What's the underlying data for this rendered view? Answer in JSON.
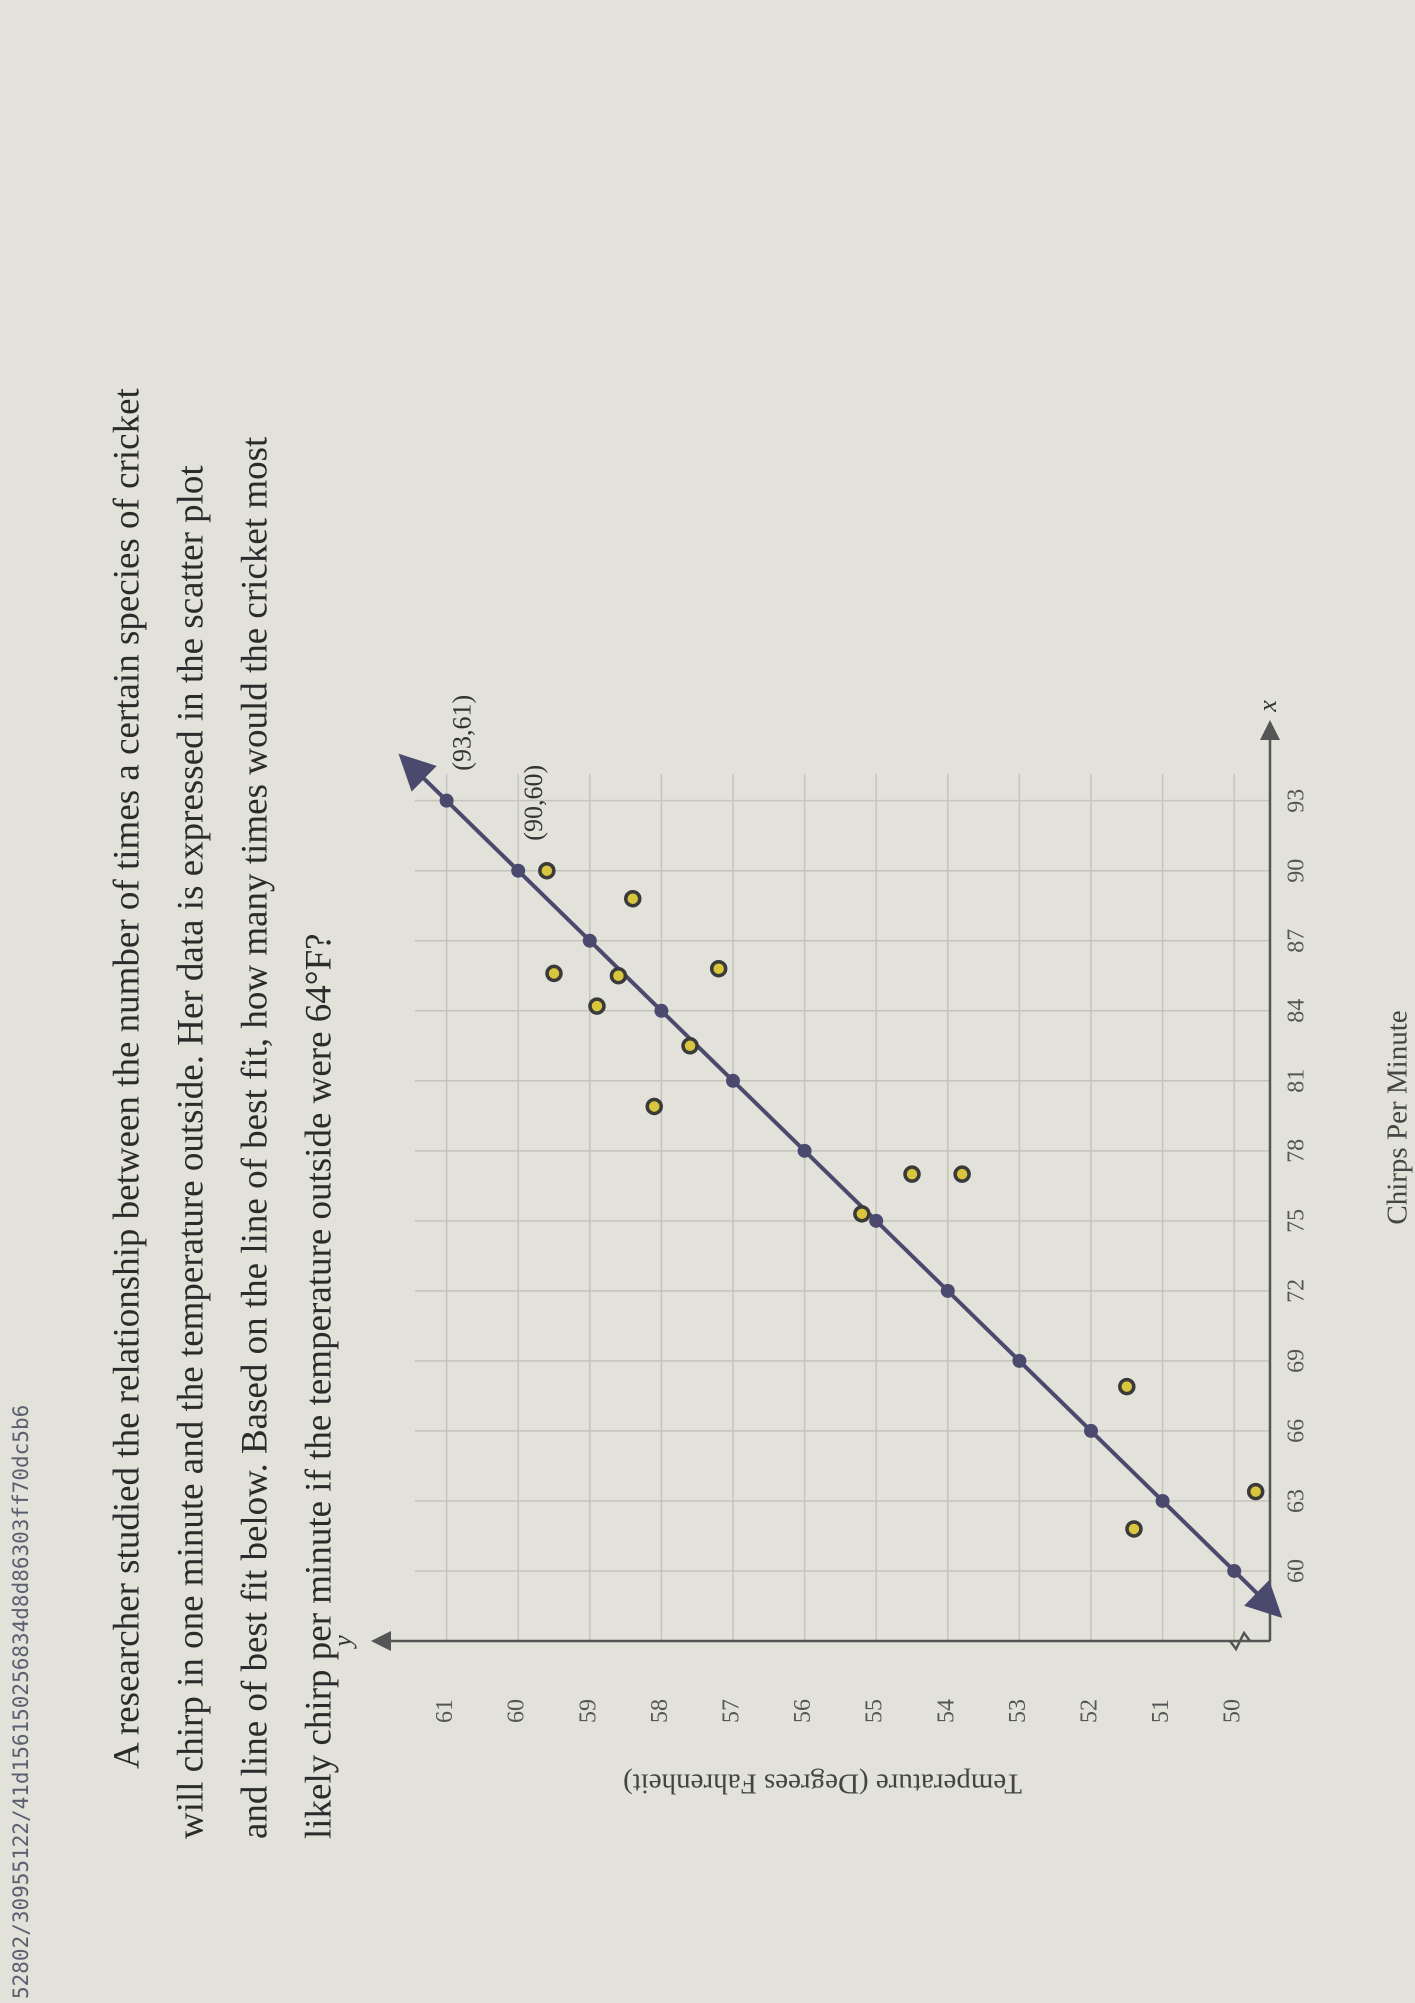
{
  "header": {
    "path": "52802/30955122/41d156150256834d8d86303ff70dc5b6"
  },
  "problem": {
    "lines": [
      "A researcher studied the relationship between the number of times a certain species of cricket",
      "will chirp in one minute and the temperature outside. Her data is expressed in the scatter plot",
      "and line of best fit below. Based on the line of best fit, how many times would the cricket most",
      "likely chirp per minute if the temperature outside were 64°F?"
    ]
  },
  "chart_data": {
    "type": "scatter",
    "x_label": "Chirps Per Minute",
    "y_label": "Temperature (Degrees Fahrenheit)",
    "x_axis_letter": "x",
    "y_axis_letter": "y",
    "xlim": [
      57,
      95
    ],
    "ylim": [
      49.5,
      62
    ],
    "xticks": [
      60,
      63,
      66,
      69,
      72,
      75,
      78,
      81,
      84,
      87,
      90,
      93
    ],
    "yticks": [
      50,
      51,
      52,
      53,
      54,
      55,
      56,
      57,
      58,
      59,
      60,
      61
    ],
    "grid": true,
    "series": [
      {
        "kind": "line",
        "color": "#4b4a6e",
        "x": [
          60,
          63,
          66,
          69,
          72,
          75,
          78,
          81,
          84,
          87,
          90,
          93
        ],
        "values": [
          50,
          51,
          52,
          53,
          54,
          55,
          56,
          57,
          58,
          59,
          60,
          61
        ]
      },
      {
        "kind": "points",
        "color": "#d9c63c",
        "x": [
          90,
          88.8,
          85.6,
          84.2,
          85.5,
          85.8,
          82.5,
          79.9,
          75.3,
          77,
          77,
          67.9,
          63.4,
          61.8
        ],
        "values": [
          59.6,
          58.4,
          59.5,
          58.9,
          58.6,
          57.2,
          57.6,
          58.1,
          55.2,
          54.5,
          53.8,
          51.5,
          49.7,
          51.4
        ]
      }
    ],
    "annotations": [
      {
        "text": "(93,61)",
        "x": 93,
        "y": 61
      },
      {
        "text": "(90,60)",
        "x": 90,
        "y": 60
      }
    ]
  }
}
